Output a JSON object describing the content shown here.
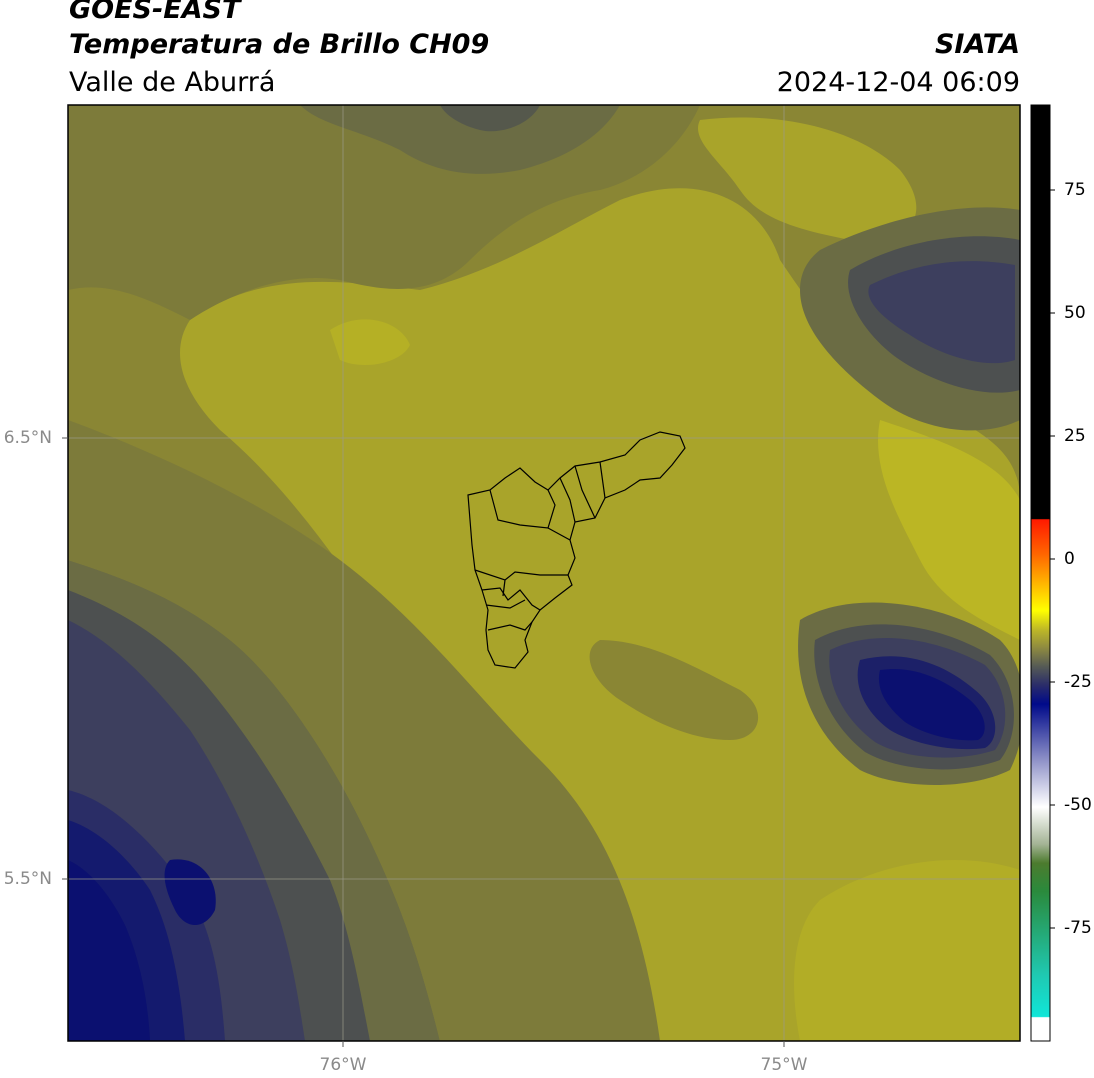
{
  "title": {
    "line1": "GOES-EAST",
    "line2": "Temperatura de Brillo CH09",
    "line3": "Valle de Aburrá",
    "agency": "SIATA",
    "datetime": "2024-12-04 06:09"
  },
  "axes": {
    "lat_labels": [
      "6.5°N",
      "5.5°N"
    ],
    "lon_labels": [
      "76°W",
      "75°W"
    ]
  },
  "colorbar": {
    "ticks": [
      "75",
      "50",
      "25",
      "0",
      "-25",
      "-50",
      "-75"
    ],
    "range": [
      -95,
      92
    ]
  },
  "colors": {
    "yellow_olive": "#b8b222",
    "dark_olive": "#6b6c44",
    "slate": "#3d3f5e",
    "navy": "#0b1070"
  }
}
